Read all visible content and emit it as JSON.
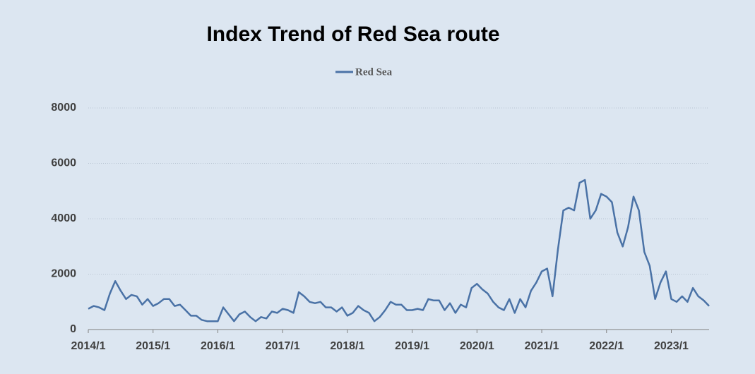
{
  "chart_data": {
    "type": "line",
    "title": "Index Trend of Red Sea route",
    "xlim": [
      "2014/1",
      "2023/8"
    ],
    "xticks": [
      "2014/1",
      "2015/1",
      "2016/1",
      "2017/1",
      "2018/1",
      "2019/1",
      "2020/1",
      "2021/1",
      "2022/1",
      "2023/1"
    ],
    "ylim": [
      0,
      8000
    ],
    "yticks": [
      0,
      2000,
      4000,
      6000,
      8000
    ],
    "grid": true,
    "legend": "top",
    "x": [
      "2014/1",
      "2014/2",
      "2014/3",
      "2014/4",
      "2014/5",
      "2014/6",
      "2014/7",
      "2014/8",
      "2014/9",
      "2014/10",
      "2014/11",
      "2014/12",
      "2015/1",
      "2015/2",
      "2015/3",
      "2015/4",
      "2015/5",
      "2015/6",
      "2015/7",
      "2015/8",
      "2015/9",
      "2015/10",
      "2015/11",
      "2015/12",
      "2016/1",
      "2016/2",
      "2016/3",
      "2016/4",
      "2016/5",
      "2016/6",
      "2016/7",
      "2016/8",
      "2016/9",
      "2016/10",
      "2016/11",
      "2016/12",
      "2017/1",
      "2017/2",
      "2017/3",
      "2017/4",
      "2017/5",
      "2017/6",
      "2017/7",
      "2017/8",
      "2017/9",
      "2017/10",
      "2017/11",
      "2017/12",
      "2018/1",
      "2018/2",
      "2018/3",
      "2018/4",
      "2018/5",
      "2018/6",
      "2018/7",
      "2018/8",
      "2018/9",
      "2018/10",
      "2018/11",
      "2018/12",
      "2019/1",
      "2019/2",
      "2019/3",
      "2019/4",
      "2019/5",
      "2019/6",
      "2019/7",
      "2019/8",
      "2019/9",
      "2019/10",
      "2019/11",
      "2019/12",
      "2020/1",
      "2020/2",
      "2020/3",
      "2020/4",
      "2020/5",
      "2020/6",
      "2020/7",
      "2020/8",
      "2020/9",
      "2020/10",
      "2020/11",
      "2020/12",
      "2021/1",
      "2021/2",
      "2021/3",
      "2021/4",
      "2021/5",
      "2021/6",
      "2021/7",
      "2021/8",
      "2021/9",
      "2021/10",
      "2021/11",
      "2021/12",
      "2022/1",
      "2022/2",
      "2022/3",
      "2022/4",
      "2022/5",
      "2022/6",
      "2022/7",
      "2022/8",
      "2022/9",
      "2022/10",
      "2022/11",
      "2022/12",
      "2023/1",
      "2023/2",
      "2023/3",
      "2023/4",
      "2023/5",
      "2023/6",
      "2023/7",
      "2023/8"
    ],
    "series": [
      {
        "name": "Red Sea",
        "color": "#4a72a6",
        "values": [
          750,
          850,
          800,
          700,
          1300,
          1750,
          1400,
          1100,
          1250,
          1200,
          900,
          1100,
          850,
          950,
          1100,
          1100,
          850,
          900,
          700,
          500,
          500,
          350,
          300,
          300,
          300,
          800,
          550,
          300,
          550,
          650,
          450,
          300,
          450,
          400,
          650,
          600,
          750,
          700,
          600,
          1350,
          1200,
          1000,
          950,
          1000,
          800,
          800,
          650,
          800,
          500,
          600,
          850,
          700,
          600,
          300,
          450,
          700,
          1000,
          900,
          900,
          700,
          700,
          750,
          700,
          1100,
          1050,
          1050,
          700,
          950,
          600,
          900,
          800,
          1500,
          1650,
          1450,
          1300,
          1000,
          800,
          700,
          1100,
          600,
          1100,
          800,
          1400,
          1700,
          2100,
          2200,
          1200,
          2900,
          4300,
          4400,
          4300,
          5300,
          5400,
          4000,
          4300,
          4900,
          4800,
          4600,
          3500,
          3000,
          3700,
          4800,
          4300,
          2800,
          2300,
          1100,
          1700,
          2100,
          1100,
          1000,
          1200,
          1000,
          1500,
          1200,
          1050,
          850
        ]
      }
    ]
  }
}
